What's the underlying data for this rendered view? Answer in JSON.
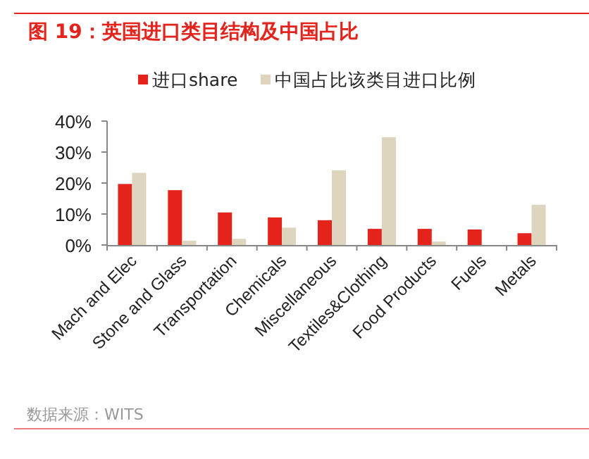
{
  "chart_data": {
    "type": "bar",
    "title": "图 19：英国进口类目结构及中国占比",
    "categories": [
      "Mach and Elec",
      "Stone and Glass",
      "Transportation",
      "Chemicals",
      "Miscellaneous",
      "Textiles&Clothing",
      "Food Products",
      "Fuels",
      "Metals"
    ],
    "series": [
      {
        "name": "进口share",
        "color": "#e3231c",
        "values": [
          19.7,
          17.7,
          10.5,
          8.9,
          8.0,
          5.2,
          5.2,
          5.0,
          3.8
        ]
      },
      {
        "name": "中国占比该类目进口比例",
        "color": "#ded5bf",
        "values": [
          23.3,
          1.4,
          2.0,
          5.6,
          24.1,
          34.8,
          1.1,
          0,
          13.0
        ]
      }
    ],
    "ylim": [
      0,
      40
    ],
    "yticks": [
      {
        "value": 0,
        "label": "0%"
      },
      {
        "value": 10,
        "label": "10%"
      },
      {
        "value": 20,
        "label": "20%"
      },
      {
        "value": 30,
        "label": "30%"
      },
      {
        "value": 40,
        "label": "40%"
      }
    ],
    "grid": false,
    "legend": "top",
    "annotations": [
      "数据来源：WITS"
    ]
  }
}
